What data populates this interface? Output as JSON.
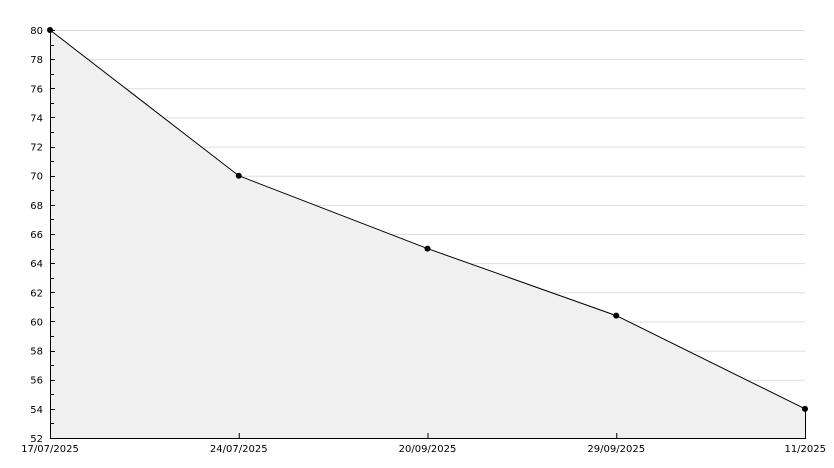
{
  "chart_data": {
    "type": "area",
    "title": "",
    "xlabel": "",
    "ylabel": "",
    "categories": [
      "17/07/2025",
      "24/07/2025",
      "20/09/2025",
      "29/09/2025",
      "11/2025"
    ],
    "values": [
      80,
      70,
      65,
      60.4,
      54
    ],
    "ylim": [
      52,
      80
    ],
    "y_ticks": [
      52,
      54,
      56,
      58,
      60,
      62,
      64,
      66,
      68,
      70,
      72,
      74,
      76,
      78,
      80
    ],
    "grid": true,
    "legend": "none",
    "colors": {
      "line": "#000000",
      "fill": "#f0f0f0",
      "grid": "#dddddd",
      "marker": "#000000"
    }
  }
}
